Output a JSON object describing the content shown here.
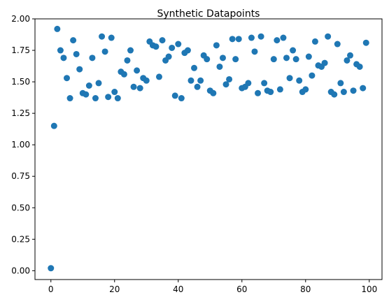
{
  "chart_data": {
    "type": "scatter",
    "title": "Synthetic Datapoints",
    "xlabel": "",
    "ylabel": "",
    "xlim": [
      -5,
      104
    ],
    "ylim": [
      -0.07,
      2.0
    ],
    "xticks": [
      0,
      20,
      40,
      60,
      80,
      100
    ],
    "yticks": [
      0.0,
      0.25,
      0.5,
      0.75,
      1.0,
      1.25,
      1.5,
      1.75,
      2.0
    ],
    "xtick_labels": [
      "0",
      "20",
      "40",
      "60",
      "80",
      "100"
    ],
    "ytick_labels": [
      "0.00",
      "0.25",
      "0.50",
      "0.75",
      "1.00",
      "1.25",
      "1.50",
      "1.75",
      "2.00"
    ],
    "grid": false,
    "marker_color": "#1f77b4",
    "series": [
      {
        "x": [
          0,
          1,
          2,
          3,
          4,
          5,
          6,
          7,
          8,
          9,
          10,
          11,
          12,
          13,
          14,
          15,
          16,
          17,
          18,
          19,
          20,
          21,
          22,
          23,
          24,
          25,
          26,
          27,
          28,
          29,
          30,
          31,
          32,
          33,
          34,
          35,
          36,
          37,
          38,
          39,
          40,
          41,
          42,
          43,
          44,
          45,
          46,
          47,
          48,
          49,
          50,
          51,
          52,
          53,
          54,
          55,
          56,
          57,
          58,
          59,
          60,
          61,
          62,
          63,
          64,
          65,
          66,
          67,
          68,
          69,
          70,
          71,
          72,
          73,
          74,
          75,
          76,
          77,
          78,
          79,
          80,
          81,
          82,
          83,
          84,
          85,
          86,
          87,
          88,
          89,
          90,
          91,
          92,
          93,
          94,
          95,
          96,
          97,
          98,
          99
        ],
        "y": [
          0.02,
          1.15,
          1.92,
          1.75,
          1.69,
          1.53,
          1.37,
          1.83,
          1.72,
          1.6,
          1.41,
          1.4,
          1.47,
          1.69,
          1.37,
          1.49,
          1.86,
          1.74,
          1.38,
          1.85,
          1.42,
          1.37,
          1.58,
          1.56,
          1.67,
          1.75,
          1.46,
          1.59,
          1.45,
          1.53,
          1.51,
          1.82,
          1.79,
          1.78,
          1.54,
          1.83,
          1.67,
          1.7,
          1.77,
          1.39,
          1.8,
          1.37,
          1.73,
          1.75,
          1.51,
          1.61,
          1.46,
          1.51,
          1.71,
          1.68,
          1.43,
          1.41,
          1.79,
          1.62,
          1.69,
          1.48,
          1.52,
          1.84,
          1.68,
          1.84,
          1.45,
          1.46,
          1.49,
          1.85,
          1.74,
          1.41,
          1.86,
          1.49,
          1.43,
          1.42,
          1.68,
          1.83,
          1.44,
          1.85,
          1.69,
          1.53,
          1.75,
          1.68,
          1.51,
          1.42,
          1.44,
          1.7,
          1.55,
          1.82,
          1.63,
          1.62,
          1.65,
          1.86,
          1.42,
          1.4,
          1.8,
          1.49,
          1.42,
          1.67,
          1.71,
          1.43,
          1.64,
          1.62,
          1.45,
          1.81
        ]
      }
    ]
  }
}
